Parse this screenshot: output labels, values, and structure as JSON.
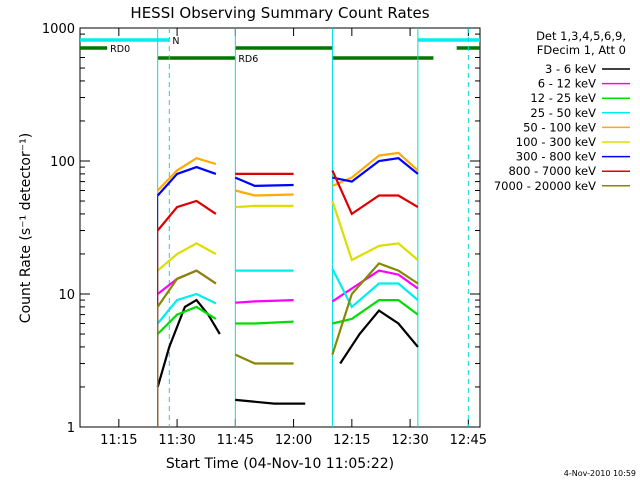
{
  "chart_data": {
    "type": "line",
    "title": "HESSI Observing Summary Count Rates",
    "xlabel": "Start Time (04-Nov-10 11:05:22)",
    "ylabel": "Count Rate (s⁻¹ detector⁻¹)",
    "yscale": "log",
    "ylim": [
      1,
      1000
    ],
    "xlim_minutes_after_11_05": [
      0,
      103
    ],
    "x_ticks": [
      "11:15",
      "11:30",
      "11:45",
      "12:00",
      "12:15",
      "12:30",
      "12:45"
    ],
    "y_ticks": [
      "1",
      "10",
      "100",
      "1000"
    ],
    "legend_header": [
      "Det 1,3,4,5,6,9,",
      "FDecim 1, Att 0"
    ],
    "legend_placement": "right",
    "timestamp": "4-Nov-2010 10:59",
    "series": [
      {
        "name": "3 - 6 keV",
        "color": "#000000",
        "values": [
          {
            "t": 20,
            "v": 2.0
          },
          {
            "t": 23,
            "v": 4.0
          },
          {
            "t": 27,
            "v": 8.0
          },
          {
            "t": 30,
            "v": 9.0
          },
          {
            "t": 33,
            "v": 7.0
          },
          {
            "t": 36,
            "v": 5.0
          },
          {
            "t": 40,
            "v": 1.6
          },
          {
            "t": 50,
            "v": 1.5
          },
          {
            "t": 58,
            "v": 1.5
          },
          {
            "t": 67,
            "v": 3.0
          },
          {
            "t": 72,
            "v": 5.0
          },
          {
            "t": 77,
            "v": 7.5
          },
          {
            "t": 82,
            "v": 6.0
          },
          {
            "t": 87,
            "v": 4.0
          }
        ]
      },
      {
        "name": "6 - 12 keV",
        "color": "#ff00ff",
        "values": [
          {
            "t": 20,
            "v": 10
          },
          {
            "t": 25,
            "v": 13
          },
          {
            "t": 30,
            "v": 15
          },
          {
            "t": 35,
            "v": 12
          },
          {
            "t": 40,
            "v": 8.6
          },
          {
            "t": 45,
            "v": 8.8
          },
          {
            "t": 55,
            "v": 9.0
          },
          {
            "t": 65,
            "v": 8.8
          },
          {
            "t": 70,
            "v": 11
          },
          {
            "t": 77,
            "v": 15
          },
          {
            "t": 82,
            "v": 14
          },
          {
            "t": 87,
            "v": 11
          }
        ]
      },
      {
        "name": "12 - 25 keV",
        "color": "#00dd00",
        "values": [
          {
            "t": 20,
            "v": 5
          },
          {
            "t": 25,
            "v": 7
          },
          {
            "t": 30,
            "v": 8
          },
          {
            "t": 35,
            "v": 6.5
          },
          {
            "t": 40,
            "v": 6.0
          },
          {
            "t": 45,
            "v": 6.0
          },
          {
            "t": 55,
            "v": 6.2
          },
          {
            "t": 65,
            "v": 6.0
          },
          {
            "t": 70,
            "v": 6.5
          },
          {
            "t": 77,
            "v": 9
          },
          {
            "t": 82,
            "v": 9
          },
          {
            "t": 87,
            "v": 7
          }
        ]
      },
      {
        "name": "25 - 50 keV",
        "color": "#00eeee",
        "values": [
          {
            "t": 20,
            "v": 6
          },
          {
            "t": 25,
            "v": 9
          },
          {
            "t": 30,
            "v": 10
          },
          {
            "t": 35,
            "v": 8.5
          },
          {
            "t": 40,
            "v": 15
          },
          {
            "t": 45,
            "v": 15
          },
          {
            "t": 55,
            "v": 15
          },
          {
            "t": 65,
            "v": 15.5
          },
          {
            "t": 70,
            "v": 8
          },
          {
            "t": 77,
            "v": 12
          },
          {
            "t": 82,
            "v": 12
          },
          {
            "t": 87,
            "v": 9
          }
        ]
      },
      {
        "name": "50 - 100 keV",
        "color": "#ffaa00",
        "values": [
          {
            "t": 20,
            "v": 60
          },
          {
            "t": 25,
            "v": 85
          },
          {
            "t": 30,
            "v": 105
          },
          {
            "t": 35,
            "v": 95
          },
          {
            "t": 40,
            "v": 60
          },
          {
            "t": 45,
            "v": 55
          },
          {
            "t": 55,
            "v": 56
          },
          {
            "t": 65,
            "v": 65
          },
          {
            "t": 70,
            "v": 75
          },
          {
            "t": 77,
            "v": 110
          },
          {
            "t": 82,
            "v": 115
          },
          {
            "t": 87,
            "v": 85
          }
        ]
      },
      {
        "name": "100 - 300 keV",
        "color": "#dddd00",
        "values": [
          {
            "t": 20,
            "v": 15
          },
          {
            "t": 25,
            "v": 20
          },
          {
            "t": 30,
            "v": 24
          },
          {
            "t": 35,
            "v": 20
          },
          {
            "t": 40,
            "v": 45
          },
          {
            "t": 45,
            "v": 46
          },
          {
            "t": 55,
            "v": 46
          },
          {
            "t": 65,
            "v": 50
          },
          {
            "t": 70,
            "v": 18
          },
          {
            "t": 77,
            "v": 23
          },
          {
            "t": 82,
            "v": 24
          },
          {
            "t": 87,
            "v": 18
          }
        ]
      },
      {
        "name": "300 - 800 keV",
        "color": "#0000ff",
        "values": [
          {
            "t": 20,
            "v": 55
          },
          {
            "t": 25,
            "v": 80
          },
          {
            "t": 30,
            "v": 90
          },
          {
            "t": 35,
            "v": 80
          },
          {
            "t": 40,
            "v": 75
          },
          {
            "t": 45,
            "v": 65
          },
          {
            "t": 55,
            "v": 66
          },
          {
            "t": 65,
            "v": 75
          },
          {
            "t": 70,
            "v": 70
          },
          {
            "t": 77,
            "v": 100
          },
          {
            "t": 82,
            "v": 105
          },
          {
            "t": 87,
            "v": 80
          }
        ]
      },
      {
        "name": "800 - 7000 keV",
        "color": "#dd0000",
        "values": [
          {
            "t": 20,
            "v": 30
          },
          {
            "t": 25,
            "v": 45
          },
          {
            "t": 30,
            "v": 50
          },
          {
            "t": 35,
            "v": 40
          },
          {
            "t": 40,
            "v": 80
          },
          {
            "t": 45,
            "v": 80
          },
          {
            "t": 55,
            "v": 80
          },
          {
            "t": 65,
            "v": 85
          },
          {
            "t": 70,
            "v": 40
          },
          {
            "t": 77,
            "v": 55
          },
          {
            "t": 82,
            "v": 55
          },
          {
            "t": 87,
            "v": 45
          }
        ]
      },
      {
        "name": "7000 - 20000 keV",
        "color": "#888800",
        "values": [
          {
            "t": 20,
            "v": 8
          },
          {
            "t": 25,
            "v": 13
          },
          {
            "t": 30,
            "v": 15
          },
          {
            "t": 35,
            "v": 12
          },
          {
            "t": 40,
            "v": 3.5
          },
          {
            "t": 45,
            "v": 3.0
          },
          {
            "t": 55,
            "v": 3.0
          },
          {
            "t": 65,
            "v": 3.5
          },
          {
            "t": 70,
            "v": 10
          },
          {
            "t": 77,
            "v": 17
          },
          {
            "t": 82,
            "v": 15
          },
          {
            "t": 87,
            "v": 12
          }
        ]
      }
    ],
    "annotations": {
      "flags": [
        {
          "label": "N",
          "color": "#00eeee",
          "segments": [
            [
              0,
              23
            ],
            [
              87,
              103
            ]
          ]
        },
        {
          "label": "RD0",
          "color": "#007700",
          "segments": [
            [
              0,
              7
            ],
            [
              40,
              65
            ],
            [
              97,
              103
            ]
          ]
        },
        {
          "label": "RD6",
          "color": "#007700",
          "segments": [
            [
              20,
              40
            ],
            [
              65,
              91
            ]
          ]
        }
      ],
      "vlines_solid": [
        20,
        40,
        65,
        87
      ],
      "vlines_dashed": [
        23,
        100
      ]
    }
  }
}
